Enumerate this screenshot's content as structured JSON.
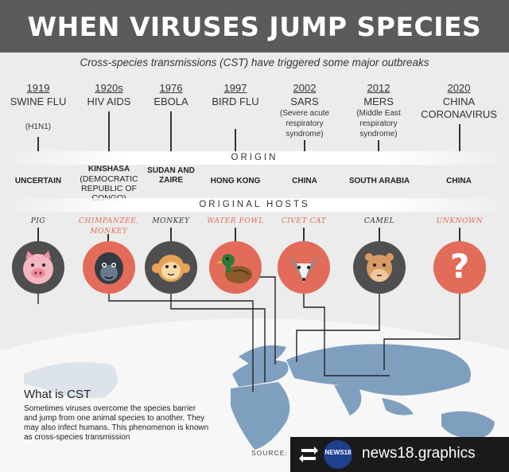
{
  "title": "WHEN VIRUSES JUMP SPECIES",
  "subtitle": "Cross-species transmissions (CST) have triggered some major outbreaks",
  "origin_label": "ORIGIN",
  "hosts_label": "ORIGINAL HOSTS",
  "columns": [
    {
      "year": "1919",
      "virus": "SWINE FLU",
      "subtitle": "(H1N1)",
      "origin": "UNCERTAIN",
      "host": "PIG",
      "host_icon": "pig-icon"
    },
    {
      "year": "1920s",
      "virus": "HIV AIDS",
      "origin": "KINSHASA",
      "origin_detail": "(Democratic Republic of Congo)",
      "host": "CHIMPANZEE, MONKEY",
      "host_icon": "gorilla-icon"
    },
    {
      "year": "1976",
      "virus": "EBOLA",
      "origin": "SUDAN AND ZAIRE",
      "host": "MONKEY",
      "host_icon": "monkey-icon"
    },
    {
      "year": "1997",
      "virus": "BIRD FLU",
      "origin": "HONG KONG",
      "host": "WATER FOWL",
      "host_icon": "duck-icon"
    },
    {
      "year": "2002",
      "virus": "SARS",
      "subtitle": "(Severe acute respiratory syndrome)",
      "origin": "CHINA",
      "host": "CIVET CAT",
      "host_icon": "civet-icon"
    },
    {
      "year": "2012",
      "virus": "MERS",
      "subtitle": "(Middle East respiratory syndrome)",
      "origin": "SOUTH ARABIA",
      "host": "CAMEL",
      "host_icon": "camel-icon"
    },
    {
      "year": "2020",
      "virus": "CHINA CORONAVIRUS",
      "origin": "CHINA",
      "host": "UNKNOWN",
      "host_icon": "question-mark-icon"
    }
  ],
  "cst": {
    "title": "What is CST",
    "body": "Sometimes viruses overcome the species barrier and jump from one animal species to another. They may also infect humans. This phenomenon is known as cross-species transmission"
  },
  "source_label": "SOURCE:",
  "repost": {
    "logo_text": "NEWS18",
    "handle": "news18.graphics"
  },
  "colors": {
    "header": "#5b5b5b",
    "accent": "#e26b5a",
    "dark_circle": "#4f4f4f",
    "map": "#7f9fbf"
  }
}
